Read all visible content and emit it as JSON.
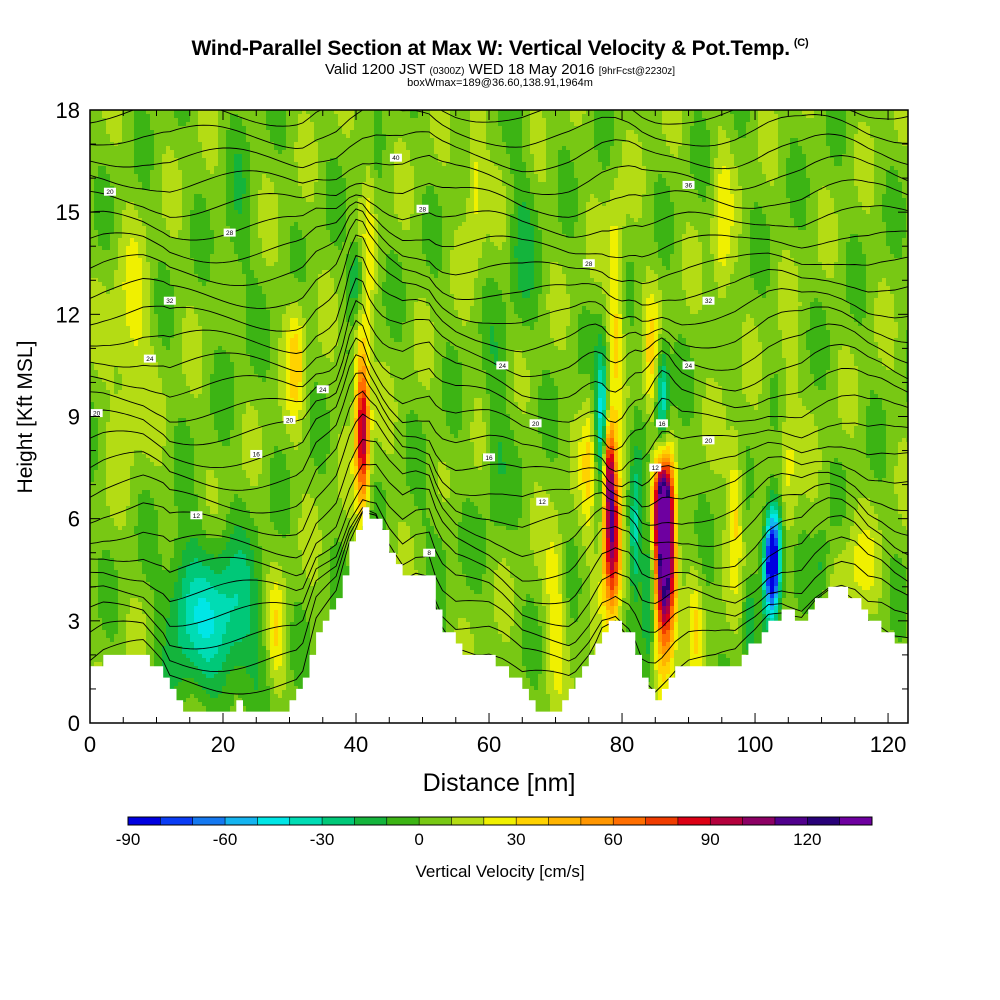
{
  "title": "Wind-Parallel Section at Max W: Vertical Velocity & Pot.Temp.",
  "title_tag": "(C)",
  "subtitle_main": "Valid 1200 JST",
  "subtitle_z": "(0300Z)",
  "subtitle_day": "WED 18 May 2016",
  "subtitle_fcst": "[9hrFcst@2230z]",
  "subtitle2": "boxWmax=189@36.60,138.91,1964m",
  "chart_data": {
    "type": "heatmap",
    "xlabel": "Distance [nm]",
    "ylabel": "Height [Kft MSL]",
    "xlim": [
      0,
      123
    ],
    "ylim": [
      0,
      18
    ],
    "x_ticks": [
      "0",
      "20",
      "40",
      "60",
      "80",
      "100",
      "120"
    ],
    "y_ticks": [
      "0",
      "3",
      "6",
      "9",
      "12",
      "15",
      "18"
    ],
    "colorbar": {
      "label": "Vertical Velocity [cm/s]",
      "ticks": [
        "-90",
        "-60",
        "-30",
        "0",
        "30",
        "60",
        "90",
        "120"
      ],
      "range": [
        -90,
        140
      ],
      "step": 10,
      "colors": [
        "#0000e0",
        "#0a3cf5",
        "#1478f0",
        "#14b4f0",
        "#00e6e6",
        "#00dcb4",
        "#00c878",
        "#14b43c",
        "#3cb414",
        "#78c814",
        "#b4dc14",
        "#f0f000",
        "#ffd200",
        "#ffb400",
        "#ff9600",
        "#ff6e00",
        "#f03c00",
        "#dc0014",
        "#b4003c",
        "#8c0064",
        "#50008c",
        "#280078",
        "#6e00a0"
      ]
    },
    "background_w": 5,
    "terrain": [
      [
        0,
        1.7
      ],
      [
        2,
        1.9
      ],
      [
        8,
        2.0
      ],
      [
        11,
        1.4
      ],
      [
        13,
        0.6
      ],
      [
        15,
        0.3
      ],
      [
        19,
        0.4
      ],
      [
        22,
        0.5
      ],
      [
        25,
        0.3
      ],
      [
        30,
        0.5
      ],
      [
        32,
        1.2
      ],
      [
        34,
        2.8
      ],
      [
        37,
        3.6
      ],
      [
        39,
        5.2
      ],
      [
        41,
        6.2
      ],
      [
        43,
        6.1
      ],
      [
        45,
        5.0
      ],
      [
        47,
        4.2
      ],
      [
        49,
        4.4
      ],
      [
        51,
        4.3
      ],
      [
        52,
        3.4
      ],
      [
        53,
        2.8
      ],
      [
        55,
        2.2
      ],
      [
        58,
        2.0
      ],
      [
        60,
        1.9
      ],
      [
        62,
        1.6
      ],
      [
        65,
        1.0
      ],
      [
        67,
        0.4
      ],
      [
        69,
        0.3
      ],
      [
        71,
        0.6
      ],
      [
        73,
        1.2
      ],
      [
        75,
        1.9
      ],
      [
        77,
        2.8
      ],
      [
        79,
        3.0
      ],
      [
        81,
        2.5
      ],
      [
        82,
        2.0
      ],
      [
        83,
        1.3
      ],
      [
        84,
        1.1
      ],
      [
        85,
        0.8
      ],
      [
        86,
        1.1
      ],
      [
        88,
        1.5
      ],
      [
        90,
        1.7
      ],
      [
        94,
        1.6
      ],
      [
        97,
        1.7
      ],
      [
        100,
        2.4
      ],
      [
        102,
        3.0
      ],
      [
        104,
        3.2
      ],
      [
        107,
        3.1
      ],
      [
        109,
        3.6
      ],
      [
        111,
        3.9
      ],
      [
        113,
        3.9
      ],
      [
        115,
        3.6
      ],
      [
        117,
        3.0
      ],
      [
        119,
        2.8
      ],
      [
        121,
        2.4
      ],
      [
        123,
        2.2
      ]
    ],
    "w_features": [
      {
        "x": 20,
        "y": 3.0,
        "sx": 4.0,
        "sy": 1.6,
        "w": -40
      },
      {
        "x": 14,
        "y": 3.5,
        "sx": 2.0,
        "sy": 1.4,
        "w": -25
      },
      {
        "x": 28,
        "y": 2.6,
        "sx": 1.0,
        "sy": 1.2,
        "w": 25
      },
      {
        "x": 31,
        "y": 10.7,
        "sx": 1.0,
        "sy": 1.3,
        "w": 28
      },
      {
        "x": 41,
        "y": 8.5,
        "sx": 0.7,
        "sy": 1.5,
        "w": 95
      },
      {
        "x": 40.5,
        "y": 11.0,
        "sx": 0.8,
        "sy": 1.2,
        "w": 20
      },
      {
        "x": 40,
        "y": 13.0,
        "sx": 0.7,
        "sy": 0.8,
        "w": -30
      },
      {
        "x": 42,
        "y": 14.5,
        "sx": 0.6,
        "sy": 2.5,
        "w": 15
      },
      {
        "x": 78.5,
        "y": 5.5,
        "sx": 0.9,
        "sy": 1.5,
        "w": 110
      },
      {
        "x": 78,
        "y": 7.5,
        "sx": 0.6,
        "sy": 1.0,
        "w": 70
      },
      {
        "x": 77,
        "y": 9.0,
        "sx": 0.7,
        "sy": 1.5,
        "w": -55
      },
      {
        "x": 75,
        "y": 7.5,
        "sx": 0.8,
        "sy": 1.5,
        "w": 25
      },
      {
        "x": 79,
        "y": 12.5,
        "sx": 0.9,
        "sy": 2.0,
        "w": 30
      },
      {
        "x": 82,
        "y": 5.5,
        "sx": 0.7,
        "sy": 1.5,
        "w": -45
      },
      {
        "x": 86.5,
        "y": 4.5,
        "sx": 1.1,
        "sy": 1.7,
        "w": 140
      },
      {
        "x": 86,
        "y": 6.5,
        "sx": 1.0,
        "sy": 1.0,
        "w": 90
      },
      {
        "x": 84,
        "y": 4.0,
        "sx": 0.7,
        "sy": 1.8,
        "w": -35
      },
      {
        "x": 84.5,
        "y": 10.5,
        "sx": 0.9,
        "sy": 1.5,
        "w": 25
      },
      {
        "x": 86,
        "y": 9.5,
        "sx": 0.7,
        "sy": 1.2,
        "w": -50
      },
      {
        "x": 88.5,
        "y": 6.0,
        "sx": 0.6,
        "sy": 1.0,
        "w": -25
      },
      {
        "x": 91,
        "y": 3.0,
        "sx": 0.7,
        "sy": 1.2,
        "w": 20
      },
      {
        "x": 97,
        "y": 6.5,
        "sx": 0.8,
        "sy": 1.4,
        "w": 30
      },
      {
        "x": 102.5,
        "y": 4.5,
        "sx": 0.8,
        "sy": 1.0,
        "w": -95
      },
      {
        "x": 103,
        "y": 5.5,
        "sx": 0.9,
        "sy": 1.0,
        "w": -45
      },
      {
        "x": 99,
        "y": 3.0,
        "sx": 0.6,
        "sy": 0.8,
        "w": -25
      },
      {
        "x": 110,
        "y": 4.5,
        "sx": 1.0,
        "sy": 0.8,
        "w": -20
      },
      {
        "x": 115,
        "y": 4.5,
        "sx": 2.5,
        "sy": 1.0,
        "w": 15
      },
      {
        "x": 61,
        "y": 8.5,
        "sx": 1.2,
        "sy": 2.0,
        "w": -15
      },
      {
        "x": 70,
        "y": 3.5,
        "sx": 1.0,
        "sy": 1.5,
        "w": 25
      },
      {
        "x": 53,
        "y": 5.5,
        "sx": 2.0,
        "sy": 1.0,
        "w": -10
      },
      {
        "x": 6,
        "y": 11.0,
        "sx": 2.0,
        "sy": 2.0,
        "w": 20
      },
      {
        "x": 95,
        "y": 14.0,
        "sx": 1.0,
        "sy": 2.0,
        "w": 20
      },
      {
        "x": 65,
        "y": 14.0,
        "sx": 1.5,
        "sy": 2.0,
        "w": -15
      },
      {
        "x": 22,
        "y": 14.0,
        "sx": 1.5,
        "sy": 2.5,
        "w": -10
      },
      {
        "x": 58,
        "y": 16.0,
        "sx": 1.0,
        "sy": 1.5,
        "w": 25
      },
      {
        "x": 105,
        "y": 8.0,
        "sx": 1.0,
        "sy": 2.0,
        "w": 20
      }
    ],
    "theta_contour_labels": [
      {
        "x": 3,
        "y": 15.6,
        "t": "20"
      },
      {
        "x": 46,
        "y": 16.6,
        "t": "40"
      },
      {
        "x": 21,
        "y": 14.4,
        "t": "28"
      },
      {
        "x": 50,
        "y": 15.1,
        "t": "28"
      },
      {
        "x": 12,
        "y": 12.4,
        "t": "32"
      },
      {
        "x": 75,
        "y": 13.5,
        "t": "28"
      },
      {
        "x": 90,
        "y": 15.8,
        "t": "36"
      },
      {
        "x": 93,
        "y": 12.4,
        "t": "32"
      },
      {
        "x": 9,
        "y": 10.7,
        "t": "24"
      },
      {
        "x": 35,
        "y": 9.8,
        "t": "24"
      },
      {
        "x": 62,
        "y": 10.5,
        "t": "24"
      },
      {
        "x": 90,
        "y": 10.5,
        "t": "24"
      },
      {
        "x": 1,
        "y": 9.1,
        "t": "20"
      },
      {
        "x": 30,
        "y": 8.9,
        "t": "20"
      },
      {
        "x": 67,
        "y": 8.8,
        "t": "20"
      },
      {
        "x": 93,
        "y": 8.3,
        "t": "20"
      },
      {
        "x": 25,
        "y": 7.9,
        "t": "16"
      },
      {
        "x": 60,
        "y": 7.8,
        "t": "16"
      },
      {
        "x": 86,
        "y": 8.8,
        "t": "16"
      },
      {
        "x": 16,
        "y": 6.1,
        "t": "12"
      },
      {
        "x": 68,
        "y": 6.5,
        "t": "12"
      },
      {
        "x": 85,
        "y": 7.5,
        "t": "12"
      },
      {
        "x": 51,
        "y": 5.0,
        "t": "8"
      }
    ]
  }
}
